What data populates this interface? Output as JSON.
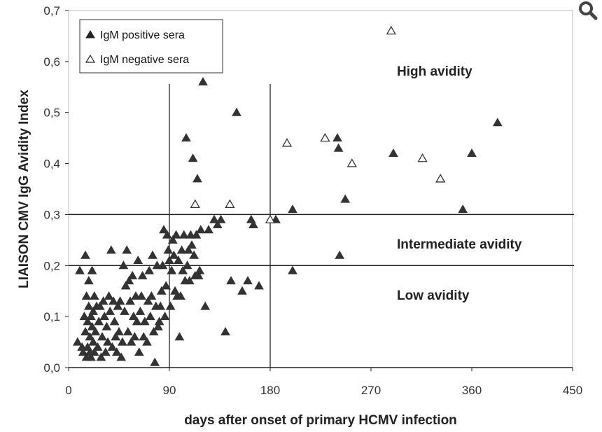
{
  "chart_data": {
    "type": "scatter",
    "xlabel": "days after onset of primary HCMV infection",
    "ylabel": "LIAISON CMV IgG Avidity Index",
    "xlim": [
      0,
      450
    ],
    "ylim": [
      0,
      0.7
    ],
    "xticks": [
      0,
      90,
      180,
      270,
      360,
      450
    ],
    "xtick_labels": [
      "0",
      "90",
      "180",
      "270",
      "360",
      "450"
    ],
    "yticks": [
      0,
      0.1,
      0.2,
      0.3,
      0.4,
      0.5,
      0.6,
      0.7
    ],
    "ytick_labels": [
      "0,0",
      "0,1",
      "0,2",
      "0,3",
      "0,4",
      "0,5",
      "0,6",
      "0,7"
    ],
    "grid": false,
    "legend_position": "top-left",
    "reference_lines": {
      "vertical_x": [
        90,
        180
      ],
      "horizontal_y": [
        0.2,
        0.3
      ]
    },
    "region_labels": [
      "High avidity",
      "Intermediate avidity",
      "Low avidity"
    ],
    "series": [
      {
        "name": "IgM positive sera",
        "marker": "filled-triangle",
        "color": "#333333",
        "points": [
          [
            8,
            0.05
          ],
          [
            10,
            0.19
          ],
          [
            12,
            0.04
          ],
          [
            13,
            0.03
          ],
          [
            14,
            0.1
          ],
          [
            15,
            0.22
          ],
          [
            15,
            0.07
          ],
          [
            16,
            0.02
          ],
          [
            16,
            0.14
          ],
          [
            17,
            0.09
          ],
          [
            17,
            0.04
          ],
          [
            18,
            0.17
          ],
          [
            18,
            0.12
          ],
          [
            19,
            0.06
          ],
          [
            19,
            0.03
          ],
          [
            20,
            0.1
          ],
          [
            20,
            0.02
          ],
          [
            21,
            0.08
          ],
          [
            21,
            0.19
          ],
          [
            22,
            0.05
          ],
          [
            22,
            0.11
          ],
          [
            23,
            0.14
          ],
          [
            23,
            0.03
          ],
          [
            24,
            0.07
          ],
          [
            25,
            0.12
          ],
          [
            26,
            0.04
          ],
          [
            27,
            0.09
          ],
          [
            28,
            0.12
          ],
          [
            29,
            0.02
          ],
          [
            30,
            0.06
          ],
          [
            31,
            0.13
          ],
          [
            32,
            0.1
          ],
          [
            33,
            0.03
          ],
          [
            34,
            0.08
          ],
          [
            35,
            0.05
          ],
          [
            36,
            0.14
          ],
          [
            37,
            0.11
          ],
          [
            38,
            0.23
          ],
          [
            39,
            0.04
          ],
          [
            40,
            0.13
          ],
          [
            41,
            0.09
          ],
          [
            42,
            0.06
          ],
          [
            43,
            0.03
          ],
          [
            44,
            0.12
          ],
          [
            45,
            0.07
          ],
          [
            46,
            0.13
          ],
          [
            47,
            0.02
          ],
          [
            48,
            0.05
          ],
          [
            49,
            0.2
          ],
          [
            50,
            0.11
          ],
          [
            51,
            0.16
          ],
          [
            52,
            0.23
          ],
          [
            53,
            0.07
          ],
          [
            54,
            0.17
          ],
          [
            55,
            0.13
          ],
          [
            56,
            0.05
          ],
          [
            57,
            0.18
          ],
          [
            58,
            0.1
          ],
          [
            59,
            0.06
          ],
          [
            60,
            0.14
          ],
          [
            61,
            0.09
          ],
          [
            62,
            0.21
          ],
          [
            63,
            0.03
          ],
          [
            64,
            0.11
          ],
          [
            65,
            0.14
          ],
          [
            66,
            0.18
          ],
          [
            67,
            0.06
          ],
          [
            68,
            0.09
          ],
          [
            70,
            0.05
          ],
          [
            71,
            0.13
          ],
          [
            72,
            0.19
          ],
          [
            73,
            0.1
          ],
          [
            74,
            0.14
          ],
          [
            75,
            0.22
          ],
          [
            76,
            0.07
          ],
          [
            77,
            0.01
          ],
          [
            78,
            0.12
          ],
          [
            79,
            0.2
          ],
          [
            80,
            0.08
          ],
          [
            81,
            0.09
          ],
          [
            82,
            0.12
          ],
          [
            83,
            0.15
          ],
          [
            84,
            0.2
          ],
          [
            85,
            0.27
          ],
          [
            86,
            0.1
          ],
          [
            87,
            0.16
          ],
          [
            88,
            0.26
          ],
          [
            89,
            0.23
          ],
          [
            90,
            0.21
          ],
          [
            91,
            0.12
          ],
          [
            92,
            0.19
          ],
          [
            93,
            0.25
          ],
          [
            94,
            0.22
          ],
          [
            95,
            0.15
          ],
          [
            96,
            0.26
          ],
          [
            97,
            0.14
          ],
          [
            98,
            0.21
          ],
          [
            99,
            0.06
          ],
          [
            100,
            0.14
          ],
          [
            101,
            0.23
          ],
          [
            102,
            0.19
          ],
          [
            103,
            0.26
          ],
          [
            104,
            0.17
          ],
          [
            105,
            0.45
          ],
          [
            106,
            0.2
          ],
          [
            107,
            0.23
          ],
          [
            108,
            0.17
          ],
          [
            109,
            0.26
          ],
          [
            110,
            0.24
          ],
          [
            111,
            0.41
          ],
          [
            112,
            0.22
          ],
          [
            113,
            0.18
          ],
          [
            114,
            0.26
          ],
          [
            115,
            0.37
          ],
          [
            116,
            0.18
          ],
          [
            117,
            0.19
          ],
          [
            118,
            0.27
          ],
          [
            120,
            0.56
          ],
          [
            122,
            0.12
          ],
          [
            125,
            0.27
          ],
          [
            130,
            0.29
          ],
          [
            133,
            0.28
          ],
          [
            136,
            0.29
          ],
          [
            140,
            0.07
          ],
          [
            145,
            0.17
          ],
          [
            150,
            0.5
          ],
          [
            155,
            0.15
          ],
          [
            160,
            0.17
          ],
          [
            163,
            0.29
          ],
          [
            165,
            0.28
          ],
          [
            170,
            0.16
          ],
          [
            185,
            0.29
          ],
          [
            200,
            0.31
          ],
          [
            200,
            0.19
          ],
          [
            240,
            0.45
          ],
          [
            241,
            0.43
          ],
          [
            242,
            0.22
          ],
          [
            247,
            0.33
          ],
          [
            290,
            0.42
          ],
          [
            352,
            0.31
          ],
          [
            360,
            0.42
          ],
          [
            383,
            0.48
          ]
        ]
      },
      {
        "name": "IgM negative sera",
        "marker": "open-triangle",
        "color": "#333333",
        "points": [
          [
            113,
            0.32
          ],
          [
            144,
            0.32
          ],
          [
            180,
            0.29
          ],
          [
            195,
            0.44
          ],
          [
            229,
            0.45
          ],
          [
            253,
            0.4
          ],
          [
            288,
            0.66
          ],
          [
            316,
            0.41
          ],
          [
            332,
            0.37
          ]
        ]
      }
    ]
  },
  "toolbar": {
    "zoom_icon": "magnifier-icon"
  }
}
